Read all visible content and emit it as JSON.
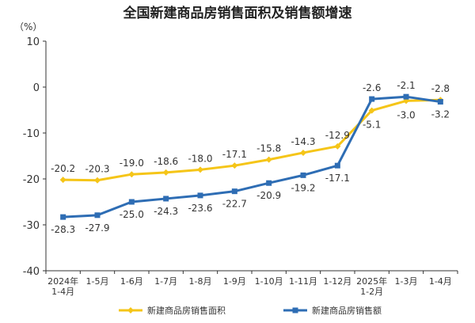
{
  "chart_data": {
    "type": "line",
    "title": "全国新建商品房销售面积及销售额增速",
    "unit_label": "（%）",
    "ylim": [
      -40,
      10
    ],
    "yticks": [
      10,
      0,
      -10,
      -20,
      -30,
      -40
    ],
    "categories": [
      [
        "2024年",
        "1-4月"
      ],
      [
        "1-5月"
      ],
      [
        "1-6月"
      ],
      [
        "1-7月"
      ],
      [
        "1-8月"
      ],
      [
        "1-9月"
      ],
      [
        "1-10月"
      ],
      [
        "1-11月"
      ],
      [
        "1-12月"
      ],
      [
        "2025年",
        "1-2月"
      ],
      [
        "1-3月"
      ],
      [
        "1-4月"
      ]
    ],
    "series": [
      {
        "name": "新建商品房销售面积",
        "color": "#F5C518",
        "values": [
          -20.2,
          -20.3,
          -19.0,
          -18.6,
          -18.0,
          -17.1,
          -15.8,
          -14.3,
          -12.9,
          -5.1,
          -3.0,
          -2.8
        ],
        "labels": [
          "-20.2",
          "-20.3",
          "-19.0",
          "-18.6",
          "-18.0",
          "-17.1",
          "-15.8",
          "-14.3",
          "-12.9",
          "-5.1",
          "-3.0",
          "-2.8"
        ]
      },
      {
        "name": "新建商品房销售额",
        "color": "#2E6DB4",
        "values": [
          -28.3,
          -27.9,
          -25.0,
          -24.3,
          -23.6,
          -22.7,
          -20.9,
          -19.2,
          -17.1,
          -2.6,
          -2.1,
          -3.2
        ],
        "labels": [
          "-28.3",
          "-27.9",
          "-25.0",
          "-24.3",
          "-23.6",
          "-22.7",
          "-20.9",
          "-19.2",
          "-17.1",
          "-2.6",
          "-2.1",
          "-3.2"
        ]
      }
    ],
    "grid": false,
    "legend_position": "bottom"
  }
}
